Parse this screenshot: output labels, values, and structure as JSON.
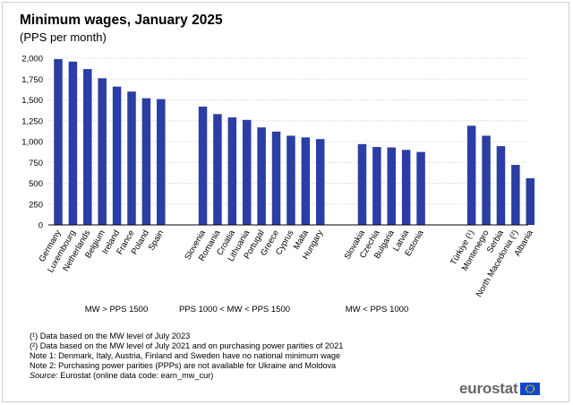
{
  "title": "Minimum wages, January 2025",
  "subtitle": "(PPS per month)",
  "groups": [
    {
      "label": "MW > PPS 1500"
    },
    {
      "label": "PPS 1000 < MW < PPS 1500"
    },
    {
      "label": "MW < PPS 1000"
    }
  ],
  "notes": {
    "n1": "(¹) Data based on the MW level of July 2023",
    "n2": "(²) Data based on the MW level of July 2021 and on purchasing power parities of 2021",
    "n3": "Note 1: Denmark, Italy, Austria, Finland and Sweden have no national minimum wage",
    "n4": "Note 2: Purchasing power parities (PPPs) are not available for Ukraine and Moldova",
    "source_label": "Source:",
    "source_text": "Eurostat (online data code: earn_mw_cur)"
  },
  "logo": {
    "text": "eurostat"
  },
  "colors": {
    "bar": "#2a3ea3",
    "grid": "#d9d9d9",
    "axis": "#000000"
  },
  "chart_data": {
    "type": "bar",
    "title": "Minimum wages, January 2025",
    "ylabel": "PPS per month",
    "ylim": [
      0,
      2000
    ],
    "yticks": [
      0,
      250,
      500,
      750,
      1000,
      1250,
      1500,
      1750,
      2000
    ],
    "ytick_labels": [
      "0",
      "250",
      "500",
      "750",
      "1,000",
      "1,250",
      "1,500",
      "1,750",
      "2,000"
    ],
    "groups": [
      {
        "name": "MW > PPS 1500",
        "categories": [
          "Germany",
          "Luxembourg",
          "Netherlands",
          "Belgium",
          "Ireland",
          "France",
          "Poland",
          "Spain"
        ],
        "values": [
          1990,
          1960,
          1870,
          1760,
          1660,
          1600,
          1520,
          1510
        ]
      },
      {
        "name": "PPS 1000 < MW < PPS 1500",
        "categories": [
          "Slovenia",
          "Romania",
          "Croatia",
          "Lithuania",
          "Portugal",
          "Greece",
          "Cyprus",
          "Malta",
          "Hungary"
        ],
        "values": [
          1420,
          1330,
          1290,
          1260,
          1170,
          1120,
          1070,
          1050,
          1030
        ]
      },
      {
        "name": "MW < PPS 1000",
        "categories": [
          "Slovakia",
          "Czechia",
          "Bulgaria",
          "Latvia",
          "Estonia"
        ],
        "values": [
          970,
          935,
          930,
          900,
          875
        ]
      },
      {
        "name": "",
        "categories": [
          "Türkiye (¹)",
          "Montenegro",
          "Serbia",
          "North Macedonia (²)",
          "Albania"
        ],
        "values": [
          1190,
          1070,
          945,
          720,
          560
        ]
      }
    ]
  }
}
